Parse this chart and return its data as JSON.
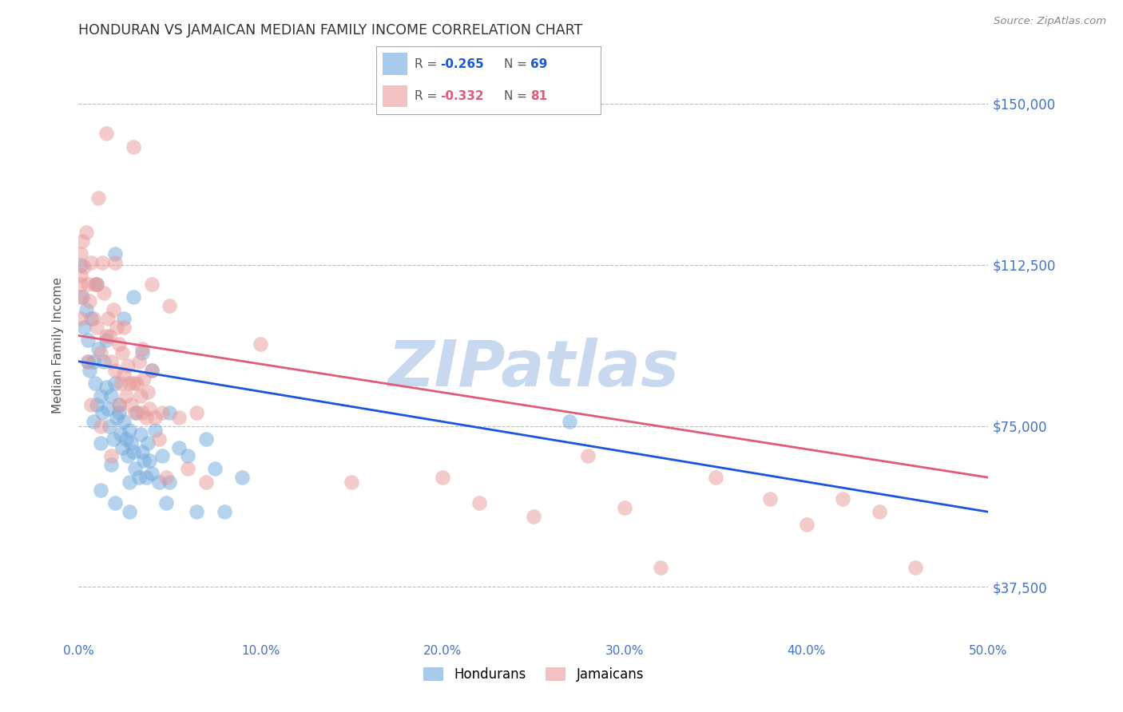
{
  "title": "HONDURAN VS JAMAICAN MEDIAN FAMILY INCOME CORRELATION CHART",
  "source_text": "Source: ZipAtlas.com",
  "ylabel": "Median Family Income",
  "xlim": [
    0.0,
    0.5
  ],
  "ylim": [
    25000,
    162500
  ],
  "xtick_labels": [
    "0.0%",
    "10.0%",
    "20.0%",
    "30.0%",
    "40.0%",
    "50.0%"
  ],
  "xtick_values": [
    0.0,
    0.1,
    0.2,
    0.3,
    0.4,
    0.5
  ],
  "ytick_values": [
    37500,
    75000,
    112500,
    150000
  ],
  "ytick_labels": [
    "$37,500",
    "$75,000",
    "$112,500",
    "$150,000"
  ],
  "honduran_color": "#6fa8dc",
  "jamaican_color": "#ea9999",
  "honduran_line_color": "#1a56db",
  "jamaican_line_color": "#e05a7a",
  "watermark_text": "ZIPatlas",
  "watermark_color": "#c8d8ee",
  "background_color": "#ffffff",
  "grid_color": "#bbbbbb",
  "title_color": "#333333",
  "tick_label_color": "#4472c4",
  "source_color": "#888888",
  "honduran_line": {
    "x0": 0.0,
    "y0": 90000,
    "x1": 0.5,
    "y1": 55000
  },
  "jamaican_line": {
    "x0": 0.0,
    "y0": 96000,
    "x1": 0.5,
    "y1": 63000
  },
  "honduran_scatter": [
    [
      0.001,
      112500
    ],
    [
      0.002,
      105000
    ],
    [
      0.003,
      98000
    ],
    [
      0.004,
      102000
    ],
    [
      0.005,
      95000
    ],
    [
      0.006,
      88000
    ],
    [
      0.007,
      100000
    ],
    [
      0.008,
      90000
    ],
    [
      0.009,
      85000
    ],
    [
      0.01,
      80000
    ],
    [
      0.011,
      93000
    ],
    [
      0.012,
      82000
    ],
    [
      0.013,
      78000
    ],
    [
      0.014,
      90000
    ],
    [
      0.015,
      84000
    ],
    [
      0.016,
      79000
    ],
    [
      0.017,
      75000
    ],
    [
      0.018,
      82000
    ],
    [
      0.019,
      72000
    ],
    [
      0.02,
      85000
    ],
    [
      0.021,
      77000
    ],
    [
      0.022,
      80000
    ],
    [
      0.023,
      73000
    ],
    [
      0.024,
      70000
    ],
    [
      0.025,
      76000
    ],
    [
      0.026,
      72000
    ],
    [
      0.027,
      68000
    ],
    [
      0.028,
      74000
    ],
    [
      0.029,
      71000
    ],
    [
      0.03,
      69000
    ],
    [
      0.031,
      65000
    ],
    [
      0.032,
      78000
    ],
    [
      0.033,
      63000
    ],
    [
      0.034,
      73000
    ],
    [
      0.035,
      69000
    ],
    [
      0.036,
      67000
    ],
    [
      0.037,
      63000
    ],
    [
      0.038,
      71000
    ],
    [
      0.039,
      67000
    ],
    [
      0.04,
      64000
    ],
    [
      0.042,
      74000
    ],
    [
      0.044,
      62000
    ],
    [
      0.046,
      68000
    ],
    [
      0.048,
      57000
    ],
    [
      0.05,
      62000
    ],
    [
      0.055,
      70000
    ],
    [
      0.06,
      68000
    ],
    [
      0.065,
      55000
    ],
    [
      0.07,
      72000
    ],
    [
      0.075,
      65000
    ],
    [
      0.08,
      55000
    ],
    [
      0.09,
      63000
    ],
    [
      0.01,
      108000
    ],
    [
      0.02,
      115000
    ],
    [
      0.015,
      95000
    ],
    [
      0.025,
      100000
    ],
    [
      0.03,
      105000
    ],
    [
      0.005,
      90000
    ],
    [
      0.035,
      92000
    ],
    [
      0.04,
      88000
    ],
    [
      0.008,
      76000
    ],
    [
      0.012,
      71000
    ],
    [
      0.018,
      66000
    ],
    [
      0.022,
      78000
    ],
    [
      0.028,
      62000
    ],
    [
      0.05,
      78000
    ],
    [
      0.012,
      60000
    ],
    [
      0.02,
      57000
    ],
    [
      0.028,
      55000
    ],
    [
      0.27,
      76000
    ]
  ],
  "jamaican_scatter": [
    [
      0.001,
      115000
    ],
    [
      0.001,
      110000
    ],
    [
      0.001,
      108000
    ],
    [
      0.001,
      105000
    ],
    [
      0.001,
      100000
    ],
    [
      0.002,
      118000
    ],
    [
      0.003,
      112000
    ],
    [
      0.004,
      120000
    ],
    [
      0.005,
      108000
    ],
    [
      0.006,
      104000
    ],
    [
      0.007,
      113000
    ],
    [
      0.008,
      100000
    ],
    [
      0.009,
      108000
    ],
    [
      0.01,
      98000
    ],
    [
      0.011,
      128000
    ],
    [
      0.012,
      92000
    ],
    [
      0.013,
      113000
    ],
    [
      0.014,
      106000
    ],
    [
      0.015,
      96000
    ],
    [
      0.016,
      100000
    ],
    [
      0.017,
      96000
    ],
    [
      0.018,
      90000
    ],
    [
      0.019,
      102000
    ],
    [
      0.02,
      88000
    ],
    [
      0.021,
      98000
    ],
    [
      0.022,
      94000
    ],
    [
      0.023,
      85000
    ],
    [
      0.024,
      92000
    ],
    [
      0.025,
      87000
    ],
    [
      0.026,
      82000
    ],
    [
      0.027,
      89000
    ],
    [
      0.028,
      85000
    ],
    [
      0.029,
      80000
    ],
    [
      0.03,
      85000
    ],
    [
      0.031,
      78000
    ],
    [
      0.032,
      85000
    ],
    [
      0.033,
      90000
    ],
    [
      0.034,
      82000
    ],
    [
      0.035,
      78000
    ],
    [
      0.036,
      86000
    ],
    [
      0.037,
      77000
    ],
    [
      0.038,
      83000
    ],
    [
      0.039,
      79000
    ],
    [
      0.04,
      108000
    ],
    [
      0.042,
      77000
    ],
    [
      0.044,
      72000
    ],
    [
      0.046,
      78000
    ],
    [
      0.048,
      63000
    ],
    [
      0.05,
      103000
    ],
    [
      0.055,
      77000
    ],
    [
      0.06,
      65000
    ],
    [
      0.065,
      78000
    ],
    [
      0.07,
      62000
    ],
    [
      0.015,
      143000
    ],
    [
      0.03,
      140000
    ],
    [
      0.1,
      94000
    ],
    [
      0.15,
      62000
    ],
    [
      0.2,
      63000
    ],
    [
      0.22,
      57000
    ],
    [
      0.25,
      54000
    ],
    [
      0.28,
      68000
    ],
    [
      0.3,
      56000
    ],
    [
      0.32,
      42000
    ],
    [
      0.35,
      63000
    ],
    [
      0.38,
      58000
    ],
    [
      0.4,
      52000
    ],
    [
      0.42,
      58000
    ],
    [
      0.44,
      55000
    ],
    [
      0.46,
      42000
    ],
    [
      0.005,
      90000
    ],
    [
      0.01,
      108000
    ],
    [
      0.02,
      113000
    ],
    [
      0.025,
      98000
    ],
    [
      0.035,
      93000
    ],
    [
      0.04,
      88000
    ],
    [
      0.007,
      80000
    ],
    [
      0.012,
      75000
    ],
    [
      0.018,
      68000
    ],
    [
      0.022,
      80000
    ]
  ]
}
